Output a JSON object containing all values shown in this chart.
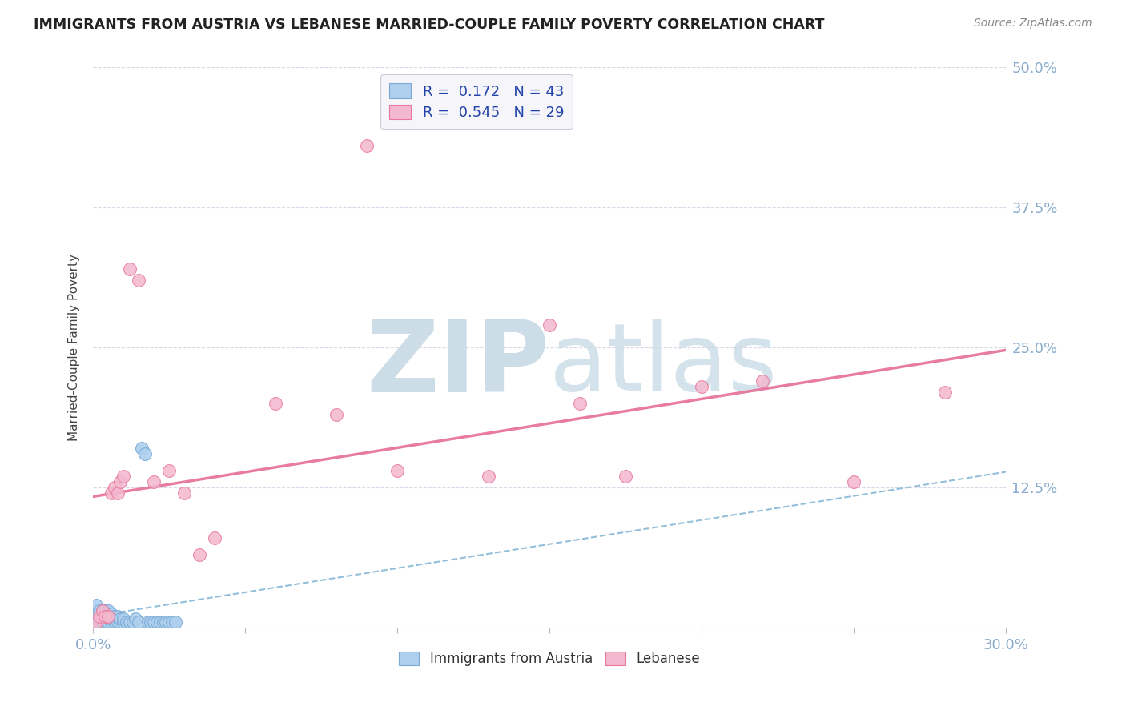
{
  "title": "IMMIGRANTS FROM AUSTRIA VS LEBANESE MARRIED-COUPLE FAMILY POVERTY CORRELATION CHART",
  "source": "Source: ZipAtlas.com",
  "ylabel": "Married-Couple Family Poverty",
  "xlim": [
    0.0,
    0.3
  ],
  "ylim": [
    0.0,
    0.5
  ],
  "xticks": [
    0.0,
    0.05,
    0.1,
    0.15,
    0.2,
    0.25,
    0.3
  ],
  "xticklabels": [
    "0.0%",
    "",
    "",
    "",
    "",
    "",
    "30.0%"
  ],
  "yticks": [
    0.0,
    0.125,
    0.25,
    0.375,
    0.5
  ],
  "yticklabels_right": [
    "",
    "12.5%",
    "25.0%",
    "37.5%",
    "50.0%"
  ],
  "austria_R": 0.172,
  "austria_N": 43,
  "lebanese_R": 0.545,
  "lebanese_N": 29,
  "austria_color": "#aecfee",
  "lebanese_color": "#f4b8ce",
  "austria_edge_color": "#7aaad4",
  "lebanese_edge_color": "#e8799e",
  "austria_line_color": "#88b8d8",
  "lebanese_line_color": "#e87ca0",
  "watermark_color": "#ccdde8",
  "background_color": "#ffffff",
  "grid_color": "#d8d8e8",
  "legend_box_color": "#f5f5fa",
  "legend_edge_color": "#ccccdd",
  "tick_color": "#88aacc",
  "title_color": "#222222",
  "source_color": "#888888",
  "austria_x": [
    0.001,
    0.001,
    0.001,
    0.002,
    0.002,
    0.002,
    0.003,
    0.003,
    0.003,
    0.004,
    0.004,
    0.004,
    0.005,
    0.005,
    0.005,
    0.006,
    0.006,
    0.006,
    0.007,
    0.007,
    0.008,
    0.008,
    0.009,
    0.009,
    0.01,
    0.01,
    0.011,
    0.012,
    0.013,
    0.014,
    0.015,
    0.016,
    0.017,
    0.018,
    0.019,
    0.02,
    0.021,
    0.022,
    0.023,
    0.024,
    0.025,
    0.026,
    0.027
  ],
  "austria_y": [
    0.005,
    0.01,
    0.02,
    0.005,
    0.01,
    0.015,
    0.005,
    0.01,
    0.015,
    0.005,
    0.01,
    0.015,
    0.005,
    0.01,
    0.015,
    0.005,
    0.008,
    0.012,
    0.005,
    0.01,
    0.005,
    0.01,
    0.005,
    0.008,
    0.005,
    0.008,
    0.005,
    0.005,
    0.005,
    0.008,
    0.005,
    0.16,
    0.155,
    0.005,
    0.005,
    0.005,
    0.005,
    0.005,
    0.005,
    0.005,
    0.005,
    0.005,
    0.005
  ],
  "lebanese_x": [
    0.001,
    0.002,
    0.003,
    0.004,
    0.005,
    0.006,
    0.007,
    0.008,
    0.009,
    0.01,
    0.012,
    0.015,
    0.02,
    0.025,
    0.03,
    0.035,
    0.04,
    0.06,
    0.08,
    0.09,
    0.1,
    0.13,
    0.15,
    0.16,
    0.175,
    0.2,
    0.22,
    0.25,
    0.28
  ],
  "lebanese_y": [
    0.005,
    0.01,
    0.015,
    0.01,
    0.01,
    0.12,
    0.125,
    0.12,
    0.13,
    0.135,
    0.32,
    0.31,
    0.13,
    0.14,
    0.12,
    0.065,
    0.08,
    0.2,
    0.19,
    0.43,
    0.14,
    0.135,
    0.27,
    0.2,
    0.135,
    0.215,
    0.22,
    0.13,
    0.21
  ]
}
